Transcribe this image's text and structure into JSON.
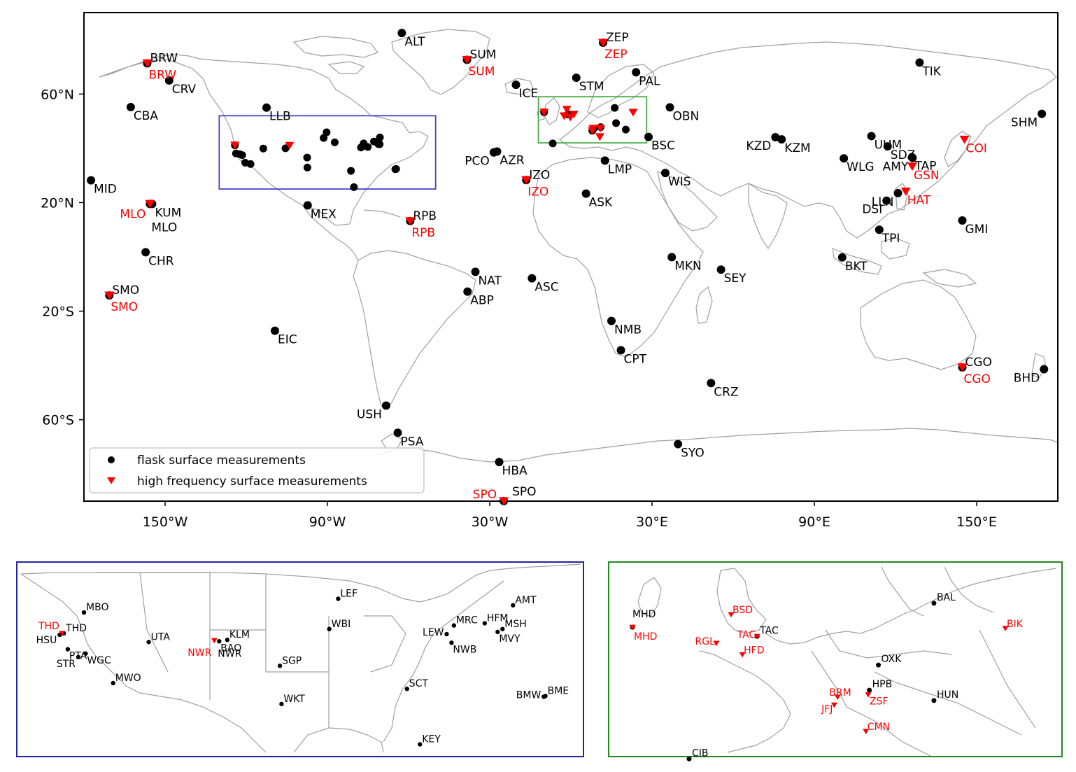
{
  "main_map": {
    "lon_range": [
      -180,
      180
    ],
    "lat_range": [
      -90,
      90
    ],
    "x_ticks": [
      {
        "lon": -150,
        "label": "150°W"
      },
      {
        "lon": -90,
        "label": "90°W"
      },
      {
        "lon": -30,
        "label": "30°W"
      },
      {
        "lon": 30,
        "label": "30°E"
      },
      {
        "lon": 90,
        "label": "90°E"
      },
      {
        "lon": 150,
        "label": "150°E"
      }
    ],
    "y_ticks": [
      {
        "lat": 60,
        "label": "60°N"
      },
      {
        "lat": 20,
        "label": "20°N"
      },
      {
        "lat": -20,
        "label": "20°S"
      },
      {
        "lat": -60,
        "label": "60°S"
      }
    ],
    "box_usa": {
      "lon": [
        -130,
        -50
      ],
      "lat": [
        25,
        52
      ],
      "color": "#4444cc"
    },
    "box_europe": {
      "lon": [
        -12,
        28
      ],
      "lat": [
        42,
        59
      ],
      "color": "#44aa44"
    },
    "flask_sites": [
      {
        "name": "ALT",
        "lon": -62.5,
        "lat": 82.5
      },
      {
        "name": "BRW",
        "lon": -156.6,
        "lat": 71.3
      },
      {
        "name": "CRV",
        "lon": -148.5,
        "lat": 65.0
      },
      {
        "name": "CBA",
        "lon": -162.7,
        "lat": 55.2
      },
      {
        "name": "LLB",
        "lon": -112.5,
        "lat": 55.0
      },
      {
        "name": "SUM",
        "lon": -38.4,
        "lat": 72.6
      },
      {
        "name": "ZEP",
        "lon": 11.9,
        "lat": 78.9
      },
      {
        "name": "TIK",
        "lon": 128.9,
        "lat": 71.6
      },
      {
        "name": "STM",
        "lon": 2.0,
        "lat": 66.0
      },
      {
        "name": "PAL",
        "lon": 24.1,
        "lat": 68.0
      },
      {
        "name": "ICE",
        "lon": -20.3,
        "lat": 63.4
      },
      {
        "name": "OBN",
        "lon": 36.6,
        "lat": 55.1
      },
      {
        "name": "SHM",
        "lon": 174.1,
        "lat": 52.7
      },
      {
        "name": "BSC",
        "lon": 28.7,
        "lat": 44.2
      },
      {
        "name": "UUM",
        "lon": 111.1,
        "lat": 44.5
      },
      {
        "name": "KZD",
        "lon": 75.6,
        "lat": 44.1
      },
      {
        "name": "KZM",
        "lon": 77.9,
        "lat": 43.3
      },
      {
        "name": "SDZ",
        "lon": 117.1,
        "lat": 40.7
      },
      {
        "name": "TAP",
        "lon": 126.1,
        "lat": 36.7
      },
      {
        "name": "WLG",
        "lon": 100.9,
        "lat": 36.3
      },
      {
        "name": "AMY",
        "lon": 126.3,
        "lat": 36.5
      },
      {
        "name": "PCO",
        "lon": -28.5,
        "lat": 38.5
      },
      {
        "name": "AZR",
        "lon": -27.3,
        "lat": 38.8
      },
      {
        "name": "LMP",
        "lon": 12.6,
        "lat": 35.5
      },
      {
        "name": "IZO",
        "lon": -16.5,
        "lat": 28.3
      },
      {
        "name": "WIS",
        "lon": 34.9,
        "lat": 30.9
      },
      {
        "name": "MID",
        "lon": -177.4,
        "lat": 28.2
      },
      {
        "name": "ASK",
        "lon": 5.6,
        "lat": 23.3
      },
      {
        "name": "LLN",
        "lon": 120.9,
        "lat": 23.5
      },
      {
        "name": "DSI",
        "lon": 116.7,
        "lat": 20.7
      },
      {
        "name": "KUM",
        "lon": -154.8,
        "lat": 19.5
      },
      {
        "name": "MLO",
        "lon": -155.6,
        "lat": 19.5
      },
      {
        "name": "MEX",
        "lon": -97.3,
        "lat": 19.0
      },
      {
        "name": "RPB",
        "lon": -59.4,
        "lat": 13.2
      },
      {
        "name": "GMI",
        "lon": 144.7,
        "lat": 13.4
      },
      {
        "name": "TPI",
        "lon": 114.0,
        "lat": 10.0
      },
      {
        "name": "CHR",
        "lon": -157.2,
        "lat": 1.7
      },
      {
        "name": "MKN",
        "lon": 37.3,
        "lat": -0.1
      },
      {
        "name": "BKT",
        "lon": 100.3,
        "lat": -0.2
      },
      {
        "name": "SEY",
        "lon": 55.5,
        "lat": -4.7
      },
      {
        "name": "NAT",
        "lon": -35.3,
        "lat": -5.5
      },
      {
        "name": "ASC",
        "lon": -14.4,
        "lat": -7.9
      },
      {
        "name": "ABP",
        "lon": -38.2,
        "lat": -12.8
      },
      {
        "name": "SMO",
        "lon": -170.6,
        "lat": -14.2
      },
      {
        "name": "EIC",
        "lon": -109.4,
        "lat": -27.2
      },
      {
        "name": "NMB",
        "lon": 15.0,
        "lat": -23.6
      },
      {
        "name": "CPT",
        "lon": 18.5,
        "lat": -34.4
      },
      {
        "name": "CGO",
        "lon": 144.7,
        "lat": -40.7
      },
      {
        "name": "BHD",
        "lon": 174.9,
        "lat": -41.4
      },
      {
        "name": "CRZ",
        "lon": 51.8,
        "lat": -46.5
      },
      {
        "name": "USH",
        "lon": -68.3,
        "lat": -54.8
      },
      {
        "name": "PSA",
        "lon": -64.0,
        "lat": -64.8
      },
      {
        "name": "SYO",
        "lon": 39.6,
        "lat": -69.0
      },
      {
        "name": "HBA",
        "lon": -26.5,
        "lat": -75.6
      },
      {
        "name": "SPO",
        "lon": -24.8,
        "lat": -89.98
      }
    ],
    "hf_sites": [
      {
        "name": "BRW",
        "lon": -156.6,
        "lat": 71.3
      },
      {
        "name": "SUM",
        "lon": -38.4,
        "lat": 72.6
      },
      {
        "name": "ZEP",
        "lon": 11.9,
        "lat": 78.9
      },
      {
        "name": "COI",
        "lon": 145.5,
        "lat": 43.2
      },
      {
        "name": "GSN",
        "lon": 126.2,
        "lat": 33.3
      },
      {
        "name": "HAT",
        "lon": 123.8,
        "lat": 24.1
      },
      {
        "name": "IZO",
        "lon": -16.5,
        "lat": 28.3
      },
      {
        "name": "MLO",
        "lon": -155.6,
        "lat": 19.5
      },
      {
        "name": "RPB",
        "lon": -59.4,
        "lat": 13.2
      },
      {
        "name": "SMO",
        "lon": -170.6,
        "lat": -14.2
      },
      {
        "name": "CGO",
        "lon": 144.7,
        "lat": -40.7
      },
      {
        "name": "SPO",
        "lon": -24.8,
        "lat": -89.98
      }
    ],
    "usa_cluster_dots": [
      {
        "lon": -124.2,
        "lat": 41.1
      },
      {
        "lon": -123.8,
        "lat": 38.1
      },
      {
        "lon": -122.4,
        "lat": 37.8
      },
      {
        "lon": -121.5,
        "lat": 37.5
      },
      {
        "lon": -120.4,
        "lat": 34.7
      },
      {
        "lon": -118.4,
        "lat": 34.2
      },
      {
        "lon": -113.7,
        "lat": 39.9
      },
      {
        "lon": -105.5,
        "lat": 40.0
      },
      {
        "lon": -97.5,
        "lat": 36.6
      },
      {
        "lon": -97.4,
        "lat": 32.9
      },
      {
        "lon": -91.4,
        "lat": 43.8
      },
      {
        "lon": -90.3,
        "lat": 45.9
      },
      {
        "lon": -87.3,
        "lat": 42.2
      },
      {
        "lon": -81.3,
        "lat": 31.7
      },
      {
        "lon": -77.6,
        "lat": 40.3
      },
      {
        "lon": -76.6,
        "lat": 41.8
      },
      {
        "lon": -75.1,
        "lat": 40.5
      },
      {
        "lon": -72.8,
        "lat": 42.5
      },
      {
        "lon": -71.2,
        "lat": 41.6
      },
      {
        "lon": -70.7,
        "lat": 41.5
      },
      {
        "lon": -70.6,
        "lat": 44.0
      },
      {
        "lon": -64.6,
        "lat": 32.4
      },
      {
        "lon": -64.9,
        "lat": 32.3
      },
      {
        "lon": -80.2,
        "lat": 25.7
      }
    ],
    "usa_cluster_hf": [
      {
        "lon": -124.2,
        "lat": 41.1
      },
      {
        "lon": -104.0,
        "lat": 41.0
      }
    ],
    "eu_cluster_dots": [
      {
        "lon": -9.9,
        "lat": 53.3
      },
      {
        "lon": 11.0,
        "lat": 47.8
      },
      {
        "lon": 20.3,
        "lat": 46.9
      },
      {
        "lon": 16.7,
        "lat": 49.3
      },
      {
        "lon": 7.9,
        "lat": 46.5
      },
      {
        "lon": -1.1,
        "lat": 52.5
      },
      {
        "lon": -6.7,
        "lat": 41.8
      },
      {
        "lon": 16.2,
        "lat": 54.9
      },
      {
        "lon": 8.4,
        "lat": 47.2
      }
    ],
    "eu_cluster_hf": [
      {
        "lon": -9.9,
        "lat": 53.3
      },
      {
        "lon": -1.5,
        "lat": 54.3
      },
      {
        "lon": -2.5,
        "lat": 51.9
      },
      {
        "lon": 1.1,
        "lat": 52.5
      },
      {
        "lon": -0.2,
        "lat": 51.4
      },
      {
        "lon": 7.9,
        "lat": 46.5
      },
      {
        "lon": 8.2,
        "lat": 47.3
      },
      {
        "lon": 10.9,
        "lat": 47.4
      },
      {
        "lon": 10.7,
        "lat": 44.2
      },
      {
        "lon": 23.0,
        "lat": 53.2
      }
    ]
  },
  "legend": {
    "flask_label": "flask surface measurements",
    "hf_label": "high frequency surface measurements",
    "flask_color": "#000000",
    "hf_color": "#ff0000"
  },
  "usa_inset": {
    "lon_range": [
      -130,
      -60
    ],
    "lat_range": [
      24,
      51
    ],
    "border_color": "#2222aa",
    "flask_sites": [
      {
        "name": "LEF",
        "lon": -90.3,
        "lat": 45.9
      },
      {
        "name": "AMT",
        "lon": -68.7,
        "lat": 45.0
      },
      {
        "name": "MBO",
        "lon": -121.7,
        "lat": 44.0
      },
      {
        "name": "HFM",
        "lon": -72.2,
        "lat": 42.5
      },
      {
        "name": "MRC",
        "lon": -76.0,
        "lat": 42.2
      },
      {
        "name": "WBI",
        "lon": -91.4,
        "lat": 41.7
      },
      {
        "name": "LEW",
        "lon": -76.9,
        "lat": 41.0
      },
      {
        "name": "MSH",
        "lon": -70.0,
        "lat": 41.7
      },
      {
        "name": "MVY",
        "lon": -70.6,
        "lat": 41.3
      },
      {
        "name": "THD",
        "lon": -124.2,
        "lat": 41.1
      },
      {
        "name": "HSU",
        "lon": -124.7,
        "lat": 40.9
      },
      {
        "name": "UTA",
        "lon": -113.7,
        "lat": 39.9
      },
      {
        "name": "KLM",
        "lon": -104.0,
        "lat": 40.2
      },
      {
        "name": "BAO",
        "lon": -105.0,
        "lat": 40.0
      },
      {
        "name": "NWB",
        "lon": -76.3,
        "lat": 39.8
      },
      {
        "name": "PTA",
        "lon": -123.7,
        "lat": 38.9
      },
      {
        "name": "WGC",
        "lon": -121.5,
        "lat": 38.3
      },
      {
        "name": "STR",
        "lon": -122.4,
        "lat": 37.8
      },
      {
        "name": "SGP",
        "lon": -97.5,
        "lat": 36.6
      },
      {
        "name": "MWO",
        "lon": -118.1,
        "lat": 34.2
      },
      {
        "name": "SCT",
        "lon": -81.8,
        "lat": 33.4
      },
      {
        "name": "WKT",
        "lon": -97.3,
        "lat": 31.3
      },
      {
        "name": "BME",
        "lon": -64.7,
        "lat": 32.4
      },
      {
        "name": "BMW",
        "lon": -64.9,
        "lat": 32.3
      },
      {
        "name": "KEY",
        "lon": -80.2,
        "lat": 25.7
      }
    ],
    "hf_sites": [
      {
        "name": "THD",
        "lon": -124.4,
        "lat": 41.1
      },
      {
        "name": "NWR",
        "lon": -105.6,
        "lat": 40.1
      }
    ],
    "extra_labels": [
      {
        "name": "NWR",
        "lon": -105.0,
        "lat": 40.0,
        "color": "black"
      }
    ]
  },
  "europe_inset": {
    "lon_range": [
      -12,
      28
    ],
    "lat_range": [
      42,
      59
    ],
    "border_color": "#228822",
    "flask_sites": [
      {
        "name": "MHD",
        "lon": -9.9,
        "lat": 53.3
      },
      {
        "name": "BAL",
        "lon": 16.7,
        "lat": 55.4
      },
      {
        "name": "TAC",
        "lon": 1.1,
        "lat": 52.5
      },
      {
        "name": "OXK",
        "lon": 11.8,
        "lat": 50.0
      },
      {
        "name": "HPB",
        "lon": 11.0,
        "lat": 47.8
      },
      {
        "name": "HUN",
        "lon": 16.7,
        "lat": 46.9
      },
      {
        "name": "CIB",
        "lon": -4.9,
        "lat": 41.8
      }
    ],
    "hf_sites": [
      {
        "name": "MHD",
        "lon": -9.9,
        "lat": 53.3
      },
      {
        "name": "BSD",
        "lon": -1.2,
        "lat": 54.4
      },
      {
        "name": "BIK",
        "lon": 23.0,
        "lat": 53.2
      },
      {
        "name": "TAC",
        "lon": 1.1,
        "lat": 52.5
      },
      {
        "name": "RGL",
        "lon": -2.5,
        "lat": 51.9
      },
      {
        "name": "HFD",
        "lon": -0.2,
        "lat": 50.9
      },
      {
        "name": "BRM",
        "lon": 8.2,
        "lat": 47.2
      },
      {
        "name": "ZSF",
        "lon": 10.9,
        "lat": 47.4
      },
      {
        "name": "JFJ",
        "lon": 7.9,
        "lat": 46.5
      },
      {
        "name": "CMN",
        "lon": 10.7,
        "lat": 44.2
      }
    ]
  }
}
